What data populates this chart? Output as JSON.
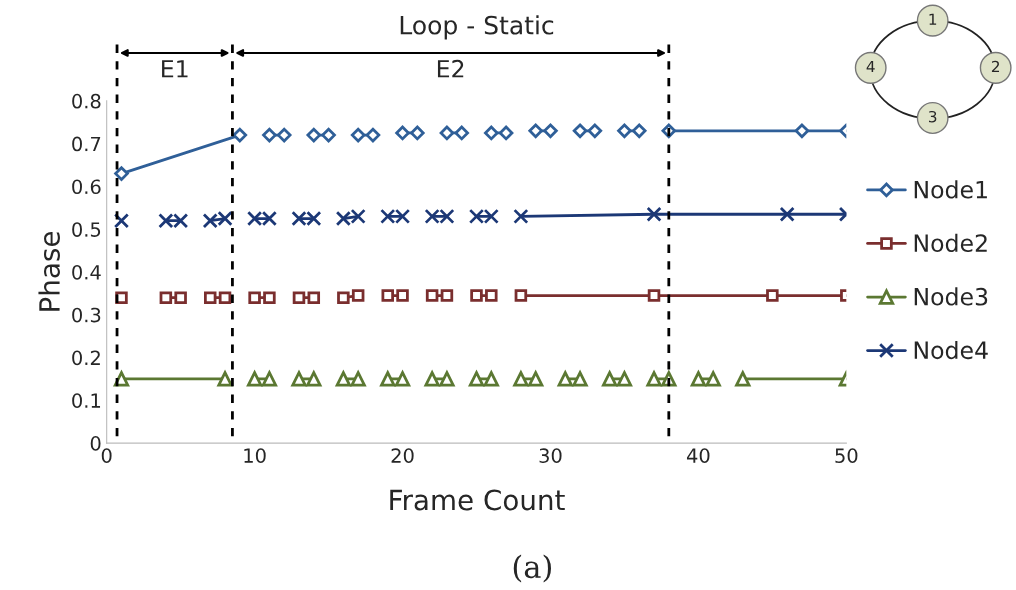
{
  "chart_data": {
    "type": "line",
    "title": "Loop - Static",
    "xlabel": "Frame Count",
    "ylabel": "Phase",
    "xlim": [
      0,
      50
    ],
    "xticks": [
      0,
      10,
      20,
      30,
      40,
      50
    ],
    "ylim": [
      0,
      0.8
    ],
    "yticks": [
      0,
      0.1,
      0.2,
      0.3,
      0.4,
      0.5,
      0.6,
      0.7,
      0.8
    ],
    "grid": false,
    "legend": "right",
    "line_style": "solid",
    "series": [
      {
        "name": "Node1",
        "color": "#2f5f98",
        "marker": "diamond",
        "x": [
          1,
          9,
          10,
          11,
          12,
          13,
          14,
          15,
          16,
          17,
          18,
          19,
          20,
          21,
          22,
          23,
          24,
          25,
          26,
          27,
          28,
          29,
          30,
          31,
          32,
          33,
          34,
          35,
          36,
          37,
          38,
          47,
          50
        ],
        "values": [
          0.63,
          0.72,
          null,
          0.72,
          0.72,
          null,
          0.72,
          0.72,
          null,
          0.72,
          0.72,
          null,
          0.725,
          0.725,
          null,
          0.725,
          0.725,
          null,
          0.725,
          0.725,
          null,
          0.73,
          0.73,
          null,
          0.73,
          0.73,
          null,
          0.73,
          0.73,
          null,
          0.73,
          0.73,
          0.73
        ]
      },
      {
        "name": "Node2",
        "color": "#7a2e2e",
        "marker": "square",
        "x": [
          1,
          2,
          4,
          5,
          6,
          7,
          8,
          9,
          10,
          11,
          12,
          13,
          14,
          15,
          16,
          17,
          18,
          19,
          20,
          21,
          22,
          23,
          24,
          25,
          26,
          27,
          28,
          37,
          45,
          50
        ],
        "values": [
          0.34,
          null,
          0.34,
          0.34,
          null,
          0.34,
          0.34,
          null,
          0.34,
          0.34,
          null,
          0.34,
          0.34,
          null,
          0.34,
          0.345,
          null,
          0.345,
          0.345,
          null,
          0.345,
          0.345,
          null,
          0.345,
          0.345,
          null,
          0.345,
          0.345,
          0.345,
          0.345
        ]
      },
      {
        "name": "Node3",
        "color": "#5b7832",
        "marker": "triangle",
        "x": [
          1,
          8,
          9,
          10,
          11,
          12,
          13,
          14,
          15,
          16,
          17,
          18,
          19,
          20,
          21,
          22,
          23,
          24,
          25,
          26,
          27,
          28,
          29,
          30,
          31,
          32,
          33,
          34,
          35,
          36,
          37,
          38,
          39,
          40,
          41,
          42,
          43,
          50
        ],
        "values": [
          0.15,
          0.15,
          null,
          0.15,
          0.15,
          null,
          0.15,
          0.15,
          null,
          0.15,
          0.15,
          null,
          0.15,
          0.15,
          null,
          0.15,
          0.15,
          null,
          0.15,
          0.15,
          null,
          0.15,
          0.15,
          null,
          0.15,
          0.15,
          null,
          0.15,
          0.15,
          null,
          0.15,
          0.15,
          null,
          0.15,
          0.15,
          null,
          0.15,
          0.15
        ]
      },
      {
        "name": "Node4",
        "color": "#1c3876",
        "marker": "cross",
        "x": [
          1,
          2,
          4,
          5,
          6,
          7,
          8,
          9,
          10,
          11,
          12,
          13,
          14,
          15,
          16,
          17,
          18,
          19,
          20,
          21,
          22,
          23,
          24,
          25,
          26,
          27,
          28,
          37,
          46,
          50
        ],
        "values": [
          0.52,
          null,
          0.52,
          0.52,
          null,
          0.52,
          0.525,
          null,
          0.525,
          0.525,
          null,
          0.525,
          0.525,
          null,
          0.525,
          0.53,
          null,
          0.53,
          0.53,
          null,
          0.53,
          0.53,
          null,
          0.53,
          0.53,
          null,
          0.53,
          0.535,
          0.535,
          0.535
        ]
      }
    ],
    "ref_lines": [
      {
        "axis": "x",
        "value": 0.7,
        "color": "#000000",
        "line_style": "dashed"
      },
      {
        "axis": "x",
        "value": 8.5,
        "color": "#000000",
        "line_style": "dashed"
      },
      {
        "axis": "x",
        "value": 38,
        "color": "#000000",
        "line_style": "dashed"
      }
    ],
    "annotations": [
      "E1",
      "E2",
      "(a)",
      "1",
      "2",
      "3",
      "4"
    ]
  }
}
